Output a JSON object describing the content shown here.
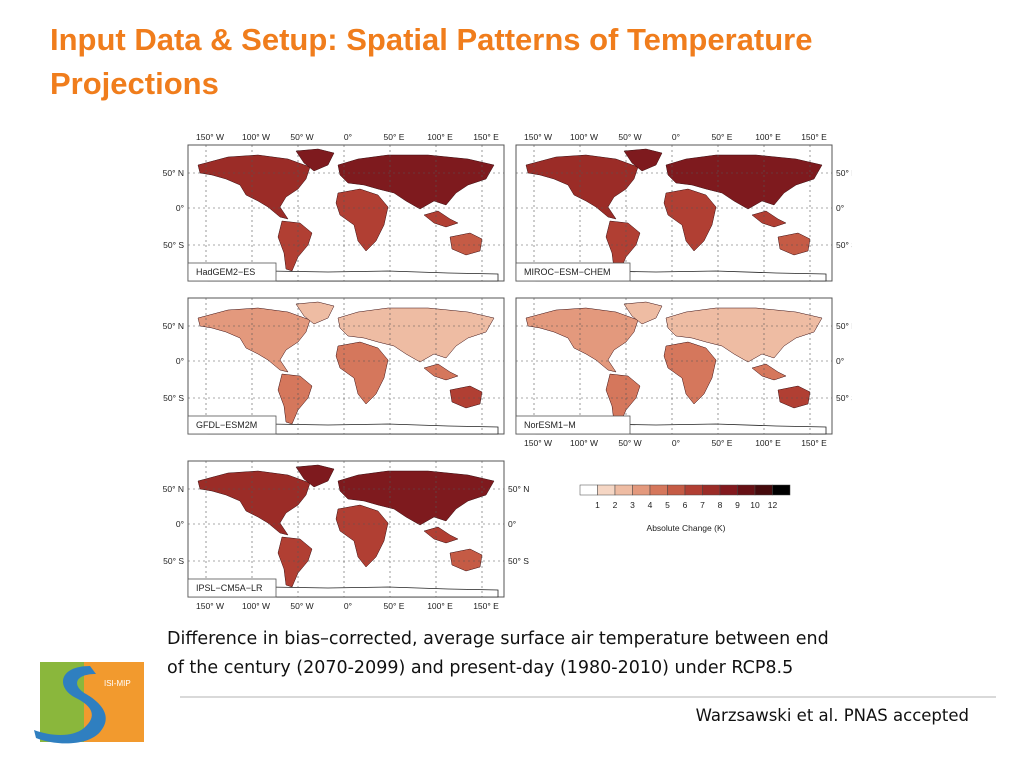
{
  "slide": {
    "title": "Input Data & Setup: Spatial Patterns of Temperature Projections",
    "caption_line1": "Difference in bias–corrected, average surface air temperature between end",
    "caption_line2": "of the century (2070-2099) and present-day (1980-2010) under RCP8.5",
    "citation": "Warzsawski et al. PNAS accepted",
    "logo_text": "ISI-MIP"
  },
  "figure": {
    "lon_ticks": [
      "150° W",
      "100° W",
      "50° W",
      "0°",
      "50° E",
      "100° E",
      "150° E"
    ],
    "lat_ticks": [
      "50° N",
      "0°",
      "50° S"
    ],
    "panels": [
      {
        "name": "HadGEM2−ES",
        "tone": "dark"
      },
      {
        "name": "MIROC−ESM−CHEM",
        "tone": "dark"
      },
      {
        "name": "GFDL−ESM2M",
        "tone": "light"
      },
      {
        "name": "NorESM1−M",
        "tone": "light"
      },
      {
        "name": "IPSL−CM5A−LR",
        "tone": "dark"
      }
    ],
    "colorbar": {
      "ticks": [
        "1",
        "2",
        "3",
        "4",
        "5",
        "6",
        "7",
        "8",
        "9",
        "10",
        "12"
      ],
      "label": "Absolute Change (K)",
      "colors": [
        "#ffffff",
        "#f5d6c4",
        "#eebca3",
        "#e3997d",
        "#d5775c",
        "#c55b45",
        "#b13f33",
        "#9b2c27",
        "#82191e",
        "#661015",
        "#450a0c",
        "#000000"
      ]
    }
  },
  "colors": {
    "title": "#f07d1c",
    "ocean": "#ffffff",
    "land_dark": [
      "#7e1a1e",
      "#9b2c27",
      "#b13f33",
      "#c55b45"
    ],
    "land_light": [
      "#eebca3",
      "#e3997d",
      "#d5775c",
      "#b13f33"
    ]
  }
}
